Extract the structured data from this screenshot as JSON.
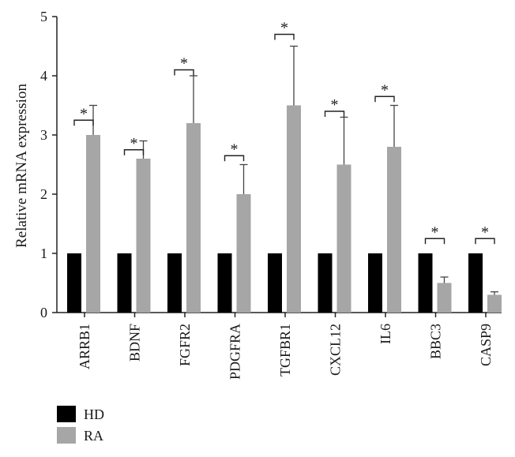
{
  "chart_data": {
    "type": "bar",
    "title": "",
    "xlabel": "",
    "ylabel": "Relative mRNA expression",
    "ylim": [
      0,
      5
    ],
    "yticks": [
      0,
      1,
      2,
      3,
      4,
      5
    ],
    "grid": false,
    "legend_position": "bottom-left",
    "categories": [
      "ARRB1",
      "BDNF",
      "FGFR2",
      "PDGFRA",
      "TGFBR1",
      "CXCL12",
      "IL6",
      "BBC3",
      "CASP9"
    ],
    "series": [
      {
        "name": "HD",
        "color": "#000000",
        "values": [
          1,
          1,
          1,
          1,
          1,
          1,
          1,
          1,
          1
        ]
      },
      {
        "name": "RA",
        "color": "#a6a6a6",
        "values": [
          3.0,
          2.6,
          3.2,
          2.0,
          3.5,
          2.5,
          2.8,
          0.5,
          0.3
        ],
        "error_plus": [
          0.5,
          0.3,
          0.8,
          0.5,
          1.0,
          0.8,
          0.7,
          0.1,
          0.05
        ]
      }
    ],
    "significance_marker": "*",
    "significance_heights": [
      3.25,
      2.75,
      4.1,
      2.65,
      4.7,
      3.4,
      3.65,
      1.25,
      1.25
    ]
  }
}
